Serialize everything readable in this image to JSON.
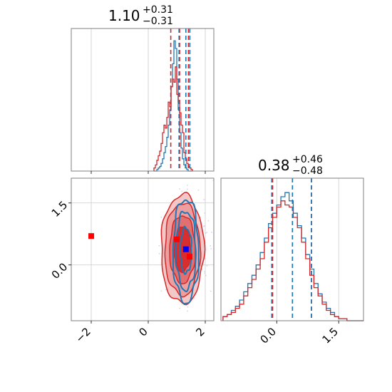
{
  "chart_data": {
    "type": "corner",
    "parameters": [
      "p0",
      "p1"
    ],
    "titles": [
      {
        "main": "1.10",
        "sup": "+0.31",
        "sub": "−0.31"
      },
      {
        "main": "0.38",
        "sup": "+0.46",
        "sub": "−0.48"
      }
    ],
    "x_ticks": {
      "p0": {
        "values": [
          -2,
          0,
          2
        ],
        "labels": [
          "−2",
          "0",
          "2"
        ]
      },
      "p1": {
        "values": [
          0.0,
          1.5
        ],
        "labels": [
          "0.0",
          "1.5"
        ]
      }
    },
    "y_ticks": {
      "p1": {
        "values": [
          0.0,
          1.5
        ],
        "labels": [
          "0.0",
          "1.5"
        ]
      }
    },
    "ranges": {
      "p0": [
        -2.7,
        2.3
      ],
      "p1": [
        -1.35,
        2.1
      ]
    },
    "grid": true,
    "colors": {
      "red": "#d62728",
      "blue": "#1f77b4",
      "marker_blue": "#0000ff",
      "marker_red": "#ff0000",
      "frame": "#7f7f7f"
    },
    "hist_p0": {
      "bins_start": 0.2,
      "bin_width": 0.05,
      "red": [
        0.02,
        0.04,
        0.07,
        0.1,
        0.13,
        0.18,
        0.25,
        0.3,
        0.28,
        0.35,
        0.45,
        0.42,
        0.55,
        0.6,
        0.58,
        0.68,
        0.5,
        0.45,
        0.38,
        0.3,
        0.25,
        0.12,
        0.08,
        0.05,
        0.03,
        0.02,
        0.01
      ],
      "blue": [
        0.0,
        0.0,
        0.01,
        0.02,
        0.03,
        0.05,
        0.08,
        0.12,
        0.16,
        0.22,
        0.3,
        0.4,
        0.55,
        0.7,
        0.85,
        0.8,
        0.6,
        0.4,
        0.25,
        0.15,
        0.08,
        0.04,
        0.02,
        0.01,
        0.0,
        0.0,
        0.0
      ],
      "red_quantiles": [
        0.79,
        1.1,
        1.41
      ],
      "blue_quantiles": [
        1.08,
        1.32,
        1.46
      ]
    },
    "hist_p1": {
      "bins_start": -1.3,
      "bin_width": 0.1,
      "red": [
        0.02,
        0.03,
        0.04,
        0.06,
        0.08,
        0.12,
        0.16,
        0.2,
        0.25,
        0.3,
        0.38,
        0.45,
        0.5,
        0.55,
        0.58,
        0.56,
        0.55,
        0.5,
        0.45,
        0.38,
        0.3,
        0.22,
        0.16,
        0.12,
        0.08,
        0.05,
        0.03,
        0.02,
        0.01,
        0.01,
        0.0,
        0.0,
        0.0,
        0.0
      ],
      "blue": [
        0.02,
        0.03,
        0.05,
        0.07,
        0.1,
        0.14,
        0.18,
        0.22,
        0.27,
        0.33,
        0.4,
        0.47,
        0.52,
        0.56,
        0.6,
        0.62,
        0.58,
        0.52,
        0.46,
        0.4,
        0.32,
        0.25,
        0.18,
        0.13,
        0.09,
        0.06,
        0.04,
        0.02,
        0.01,
        0.01,
        0.0,
        0.0,
        0.0,
        0.0
      ],
      "red_quantiles": [
        -0.1,
        0.38,
        0.84
      ],
      "blue_quantiles": [
        -0.12,
        0.38,
        0.84
      ]
    },
    "contours": {
      "red": [
        {
          "cx": 1.2,
          "cy": 0.38,
          "rx": 0.75,
          "ry": 1.32
        },
        {
          "cx": 1.2,
          "cy": 0.38,
          "rx": 0.62,
          "ry": 1.12
        },
        {
          "cx": 1.2,
          "cy": 0.38,
          "rx": 0.45,
          "ry": 0.82
        },
        {
          "cx": 1.2,
          "cy": 0.38,
          "rx": 0.28,
          "ry": 0.55
        }
      ],
      "blue": [
        {
          "cx": 1.32,
          "cy": 0.35,
          "rx": 0.45,
          "ry": 1.25
        },
        {
          "cx": 1.32,
          "cy": 0.35,
          "rx": 0.35,
          "ry": 0.95
        },
        {
          "cx": 1.32,
          "cy": 0.35,
          "rx": 0.2,
          "ry": 0.55
        }
      ]
    },
    "markers": [
      {
        "x": -2.0,
        "y": 0.7,
        "color": "#ff0000"
      },
      {
        "x": 1.0,
        "y": 0.62,
        "color": "#ff0000"
      },
      {
        "x": 1.32,
        "y": 0.38,
        "color": "#0000ff"
      },
      {
        "x": 1.45,
        "y": 0.2,
        "color": "#ff0000"
      }
    ]
  }
}
